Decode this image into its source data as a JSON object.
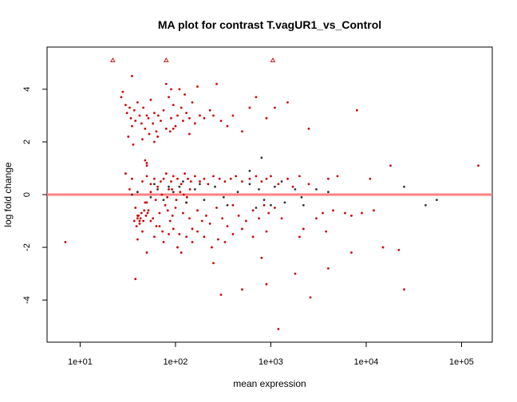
{
  "chart_data": {
    "type": "scatter",
    "title": "MA plot for contrast T.vagUR1_vs_Control",
    "xlabel": "mean expression",
    "ylabel": "log fold change",
    "x_scale": "log10",
    "xlim": [
      4.5,
      210000
    ],
    "ylim": [
      -5.6,
      5.6
    ],
    "grid": false,
    "legend": "none",
    "x_ticks": [
      {
        "value": 10,
        "label": "1e+01"
      },
      {
        "value": 100,
        "label": "1e+02"
      },
      {
        "value": 1000,
        "label": "1e+03"
      },
      {
        "value": 10000,
        "label": "1e+04"
      },
      {
        "value": 100000,
        "label": "1e+05"
      }
    ],
    "y_ticks": [
      {
        "value": -4,
        "label": "-4"
      },
      {
        "value": -2,
        "label": "-2"
      },
      {
        "value": 0,
        "label": "0"
      },
      {
        "value": 2,
        "label": "2"
      },
      {
        "value": 4,
        "label": "4"
      }
    ],
    "reference_line": {
      "y": 0,
      "color": "#ff8080"
    },
    "colors": {
      "significant": "#cc0000",
      "not_significant": "#333333"
    },
    "series": [
      {
        "points": [
          [
            27,
            3.7
          ],
          [
            28,
            3.9
          ],
          [
            30,
            3.4
          ],
          [
            31,
            3.1
          ],
          [
            33,
            3.3
          ],
          [
            34,
            2.9
          ],
          [
            35,
            2.6
          ],
          [
            37,
            3.2
          ],
          [
            38,
            2.8
          ],
          [
            40,
            3.5
          ],
          [
            42,
            3.0
          ],
          [
            44,
            2.7
          ],
          [
            46,
            3.3
          ],
          [
            48,
            2.5
          ],
          [
            50,
            3.0
          ],
          [
            52,
            2.9
          ],
          [
            55,
            3.6
          ],
          [
            58,
            2.7
          ],
          [
            60,
            3.1
          ],
          [
            63,
            2.4
          ],
          [
            66,
            3.0
          ],
          [
            70,
            2.8
          ],
          [
            75,
            3.2
          ],
          [
            80,
            2.5
          ],
          [
            85,
            3.7
          ],
          [
            90,
            2.9
          ],
          [
            95,
            3.4
          ],
          [
            100,
            2.6
          ],
          [
            105,
            3.0
          ],
          [
            110,
            4.0
          ],
          [
            115,
            3.3
          ],
          [
            120,
            2.8
          ],
          [
            130,
            3.1
          ],
          [
            140,
            2.9
          ],
          [
            150,
            3.5
          ],
          [
            160,
            2.7
          ],
          [
            170,
            4.1
          ],
          [
            180,
            3.0
          ],
          [
            200,
            2.9
          ],
          [
            230,
            3.2
          ],
          [
            250,
            3.0
          ],
          [
            270,
            4.2
          ],
          [
            300,
            2.8
          ],
          [
            350,
            2.6
          ],
          [
            400,
            3.0
          ],
          [
            500,
            2.4
          ],
          [
            600,
            3.3
          ],
          [
            700,
            3.7
          ],
          [
            900,
            2.9
          ],
          [
            1100,
            3.3
          ],
          [
            1500,
            3.5
          ],
          [
            2500,
            2.5
          ],
          [
            8000,
            3.2
          ],
          [
            32,
            2.2
          ],
          [
            36,
            1.9
          ],
          [
            45,
            2.1
          ],
          [
            53,
            2.3
          ],
          [
            65,
            2.2
          ],
          [
            88,
            2.4
          ],
          [
            140,
            2.3
          ],
          [
            80,
            4.2
          ],
          [
            90,
            4.0
          ],
          [
            35,
            4.5
          ],
          [
            125,
            3.8
          ],
          [
            95,
            2.5
          ],
          [
            60,
            2.0
          ],
          [
            48,
            1.3
          ],
          [
            50,
            1.2
          ],
          [
            50,
            1.1
          ],
          [
            38,
            -3.2
          ],
          [
            30,
            0.8
          ],
          [
            33,
            0.2
          ],
          [
            35,
            0.6
          ],
          [
            38,
            -0.5
          ],
          [
            40,
            -0.8
          ],
          [
            42,
            -1.0
          ],
          [
            45,
            0.5
          ],
          [
            48,
            -0.3
          ],
          [
            50,
            0.7
          ],
          [
            52,
            -0.6
          ],
          [
            55,
            0.4
          ],
          [
            58,
            -0.9
          ],
          [
            60,
            0.6
          ],
          [
            63,
            -1.2
          ],
          [
            65,
            0.3
          ],
          [
            68,
            -0.7
          ],
          [
            70,
            0.5
          ],
          [
            73,
            -1.4
          ],
          [
            75,
            0.6
          ],
          [
            78,
            -0.4
          ],
          [
            80,
            0.8
          ],
          [
            83,
            -0.6
          ],
          [
            85,
            0.2
          ],
          [
            88,
            -1.0
          ],
          [
            90,
            0.5
          ],
          [
            93,
            -0.8
          ],
          [
            95,
            0.7
          ],
          [
            100,
            -0.5
          ],
          [
            105,
            0.6
          ],
          [
            110,
            -1.5
          ],
          [
            115,
            0.4
          ],
          [
            120,
            -0.7
          ],
          [
            125,
            0.8
          ],
          [
            130,
            -0.3
          ],
          [
            135,
            0.6
          ],
          [
            140,
            -0.9
          ],
          [
            145,
            0.5
          ],
          [
            150,
            -1.3
          ],
          [
            160,
            0.7
          ],
          [
            170,
            -0.6
          ],
          [
            180,
            0.5
          ],
          [
            190,
            -1.0
          ],
          [
            200,
            0.6
          ],
          [
            210,
            -0.8
          ],
          [
            220,
            0.4
          ],
          [
            230,
            -1.1
          ],
          [
            250,
            0.7
          ],
          [
            270,
            -0.5
          ],
          [
            290,
            0.6
          ],
          [
            310,
            -0.9
          ],
          [
            330,
            0.5
          ],
          [
            350,
            -1.2
          ],
          [
            380,
            0.6
          ],
          [
            400,
            -0.4
          ],
          [
            430,
            0.7
          ],
          [
            460,
            -0.8
          ],
          [
            500,
            0.5
          ],
          [
            550,
            -1.0
          ],
          [
            600,
            0.6
          ],
          [
            650,
            -0.6
          ],
          [
            700,
            0.7
          ],
          [
            750,
            -0.9
          ],
          [
            800,
            0.5
          ],
          [
            850,
            -0.4
          ],
          [
            900,
            0.6
          ],
          [
            950,
            -0.7
          ],
          [
            1000,
            0.7
          ],
          [
            1100,
            -0.5
          ],
          [
            1200,
            0.4
          ],
          [
            1300,
            -0.9
          ],
          [
            1500,
            0.6
          ],
          [
            1700,
            0.3
          ],
          [
            2000,
            0.7
          ],
          [
            2200,
            -1.3
          ],
          [
            2500,
            0.4
          ],
          [
            3000,
            -0.9
          ],
          [
            3500,
            -0.7
          ],
          [
            4000,
            0.6
          ],
          [
            4500,
            -0.6
          ],
          [
            5000,
            0.7
          ],
          [
            6000,
            -0.7
          ],
          [
            7000,
            -0.8
          ],
          [
            9000,
            -0.7
          ],
          [
            12000,
            -0.6
          ],
          [
            40,
            -1.7
          ],
          [
            45,
            -1.4
          ],
          [
            50,
            -0.3
          ],
          [
            55,
            -1.0
          ],
          [
            60,
            -1.6
          ],
          [
            68,
            -1.2
          ],
          [
            75,
            -1.8
          ],
          [
            85,
            -1.5
          ],
          [
            95,
            -1.3
          ],
          [
            105,
            -2.0
          ],
          [
            115,
            -2.2
          ],
          [
            130,
            -1.6
          ],
          [
            150,
            -1.8
          ],
          [
            170,
            -1.4
          ],
          [
            200,
            -1.6
          ],
          [
            240,
            -2.0
          ],
          [
            280,
            -1.7
          ],
          [
            330,
            -1.8
          ],
          [
            400,
            -1.5
          ],
          [
            500,
            -1.3
          ],
          [
            650,
            -1.6
          ],
          [
            900,
            -1.4
          ],
          [
            2000,
            -1.6
          ],
          [
            3800,
            -1.4
          ],
          [
            250,
            -2.6
          ],
          [
            800,
            -2.4
          ],
          [
            1800,
            -3.0
          ],
          [
            900,
            -3.4
          ],
          [
            300,
            -3.8
          ],
          [
            2600,
            -3.9
          ],
          [
            4000,
            -2.8
          ],
          [
            7000,
            -2.2
          ],
          [
            15000,
            -2.0
          ],
          [
            22000,
            -2.1
          ],
          [
            25000,
            -3.6
          ],
          [
            7,
            -1.8
          ],
          [
            1200,
            -5.1
          ],
          [
            50,
            -2.2
          ],
          [
            500,
            -3.6
          ],
          [
            11000,
            0.6
          ],
          [
            18000,
            1.1
          ],
          [
            150000,
            1.1
          ],
          [
            55,
            0.1
          ],
          [
            62,
            -0.2
          ],
          [
            72,
            0.0
          ],
          [
            82,
            -0.1
          ],
          [
            92,
            0.2
          ],
          [
            102,
            -0.2
          ],
          [
            112,
            0.1
          ],
          [
            122,
            0.0
          ],
          [
            132,
            -0.1
          ],
          [
            142,
            0.2
          ],
          [
            40,
            -0.9
          ],
          [
            41,
            -0.8
          ],
          [
            42,
            -1.1
          ],
          [
            43,
            -0.9
          ],
          [
            44,
            -0.7
          ],
          [
            46,
            -1.0
          ],
          [
            47,
            -0.6
          ],
          [
            49,
            -0.8
          ],
          [
            51,
            -0.7
          ],
          [
            39,
            -1.2
          ],
          [
            37,
            -1.0
          ]
        ]
      },
      {
        "points": [
          [
            40,
            0.1
          ],
          [
            55,
            -0.1
          ],
          [
            65,
            0.2
          ],
          [
            75,
            -0.2
          ],
          [
            95,
            0.1
          ],
          [
            110,
            0.3
          ],
          [
            130,
            -0.3
          ],
          [
            160,
            0.2
          ],
          [
            200,
            -0.2
          ],
          [
            260,
            0.3
          ],
          [
            320,
            -0.1
          ],
          [
            450,
            0.1
          ],
          [
            600,
            0.4
          ],
          [
            750,
            0.2
          ],
          [
            850,
            -0.2
          ],
          [
            1100,
            0.3
          ],
          [
            1400,
            -0.3
          ],
          [
            1800,
            0.2
          ],
          [
            2100,
            -0.1
          ],
          [
            3000,
            0.2
          ],
          [
            4000,
            0.1
          ],
          [
            25000,
            0.3
          ],
          [
            42000,
            -0.4
          ],
          [
            55000,
            -0.2
          ],
          [
            60,
            0.4
          ],
          [
            85,
            0.3
          ],
          [
            120,
            0.5
          ],
          [
            180,
            0.4
          ],
          [
            350,
            -0.4
          ],
          [
            700,
            -0.5
          ],
          [
            1300,
            0.5
          ],
          [
            2200,
            -0.4
          ],
          [
            800,
            1.4
          ],
          [
            35,
            0.0
          ],
          [
            1000,
            -0.4
          ],
          [
            600,
            0.9
          ]
        ]
      },
      {
        "points": [
          [
            22,
            5.1
          ],
          [
            80,
            5.1
          ],
          [
            1050,
            5.1
          ]
        ]
      }
    ]
  }
}
